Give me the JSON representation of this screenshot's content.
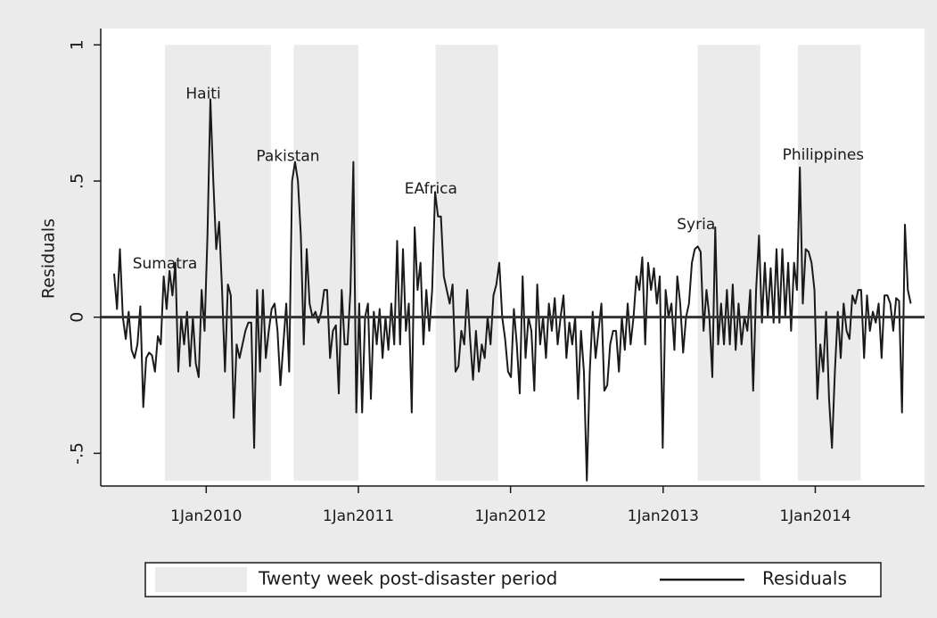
{
  "chart_data": {
    "type": "line",
    "y_label": "Residuals",
    "ylim": [
      -0.62,
      1.06
    ],
    "yticks": [
      {
        "value": -0.5,
        "label": "-.5"
      },
      0,
      {
        "value": 0.5,
        "label": ".5"
      },
      1
    ],
    "xlim": [
      "2009-04-23",
      "2014-09-20"
    ],
    "xticks": [
      {
        "value": "2010-01-01",
        "label": "1Jan2010"
      },
      {
        "value": "2011-01-01",
        "label": "1Jan2011"
      },
      {
        "value": "2012-01-01",
        "label": "1Jan2012"
      },
      {
        "value": "2013-01-01",
        "label": "1Jan2013"
      },
      {
        "value": "2014-01-01",
        "label": "1Jan2014"
      }
    ],
    "reference_line": 0,
    "bands": {
      "name": "Twenty week post-disaster period",
      "color": "#ebebeb",
      "periods": [
        [
          "2009-09-24",
          "2010-06-05"
        ],
        [
          "2010-07-30",
          "2011-01-01"
        ],
        [
          "2011-07-05",
          "2011-12-02"
        ],
        [
          "2013-03-25",
          "2013-08-22"
        ],
        [
          "2013-11-20",
          "2014-04-20"
        ]
      ]
    },
    "annotations": [
      {
        "text": "Sumatra",
        "x": "2009-09-24",
        "y": 0.196
      },
      {
        "text": "Haiti",
        "x": "2009-12-25",
        "y": 0.82
      },
      {
        "text": "Pakistan",
        "x": "2010-07-16",
        "y": 0.59
      },
      {
        "text": "EAfrica",
        "x": "2011-06-24",
        "y": 0.47
      },
      {
        "text": "Syria",
        "x": "2013-03-21",
        "y": 0.34
      },
      {
        "text": "Philippines",
        "x": "2014-01-20",
        "y": 0.595
      }
    ],
    "x": [
      "2009-05-25",
      "2009-06-01",
      "2009-06-08",
      "2009-06-15",
      "2009-06-22",
      "2009-06-29",
      "2009-07-06",
      "2009-07-13",
      "2009-07-20",
      "2009-07-27",
      "2009-08-03",
      "2009-08-10",
      "2009-08-17",
      "2009-08-24",
      "2009-08-31",
      "2009-09-07",
      "2009-09-14",
      "2009-09-21",
      "2009-09-28",
      "2009-10-05",
      "2009-10-12",
      "2009-10-19",
      "2009-10-26",
      "2009-11-02",
      "2009-11-09",
      "2009-11-16",
      "2009-11-23",
      "2009-11-30",
      "2009-12-07",
      "2009-12-14",
      "2009-12-21",
      "2009-12-28",
      "2010-01-04",
      "2010-01-11",
      "2010-01-18",
      "2010-01-25",
      "2010-02-01",
      "2010-02-08",
      "2010-02-15",
      "2010-02-22",
      "2010-03-01",
      "2010-03-08",
      "2010-03-15",
      "2010-03-22",
      "2010-03-29",
      "2010-04-05",
      "2010-04-12",
      "2010-04-19",
      "2010-04-26",
      "2010-05-03",
      "2010-05-10",
      "2010-05-17",
      "2010-05-24",
      "2010-05-31",
      "2010-06-07",
      "2010-06-14",
      "2010-06-21",
      "2010-06-28",
      "2010-07-05",
      "2010-07-12",
      "2010-07-19",
      "2010-07-26",
      "2010-08-02",
      "2010-08-09",
      "2010-08-16",
      "2010-08-23",
      "2010-08-30",
      "2010-09-06",
      "2010-09-13",
      "2010-09-20",
      "2010-09-27",
      "2010-10-04",
      "2010-10-11",
      "2010-10-18",
      "2010-10-25",
      "2010-11-01",
      "2010-11-08",
      "2010-11-15",
      "2010-11-22",
      "2010-11-29",
      "2010-12-06",
      "2010-12-13",
      "2010-12-20",
      "2010-12-27",
      "2011-01-03",
      "2011-01-10",
      "2011-01-17",
      "2011-01-24",
      "2011-01-31",
      "2011-02-07",
      "2011-02-14",
      "2011-02-21",
      "2011-02-28",
      "2011-03-07",
      "2011-03-14",
      "2011-03-21",
      "2011-03-28",
      "2011-04-04",
      "2011-04-11",
      "2011-04-18",
      "2011-04-25",
      "2011-05-02",
      "2011-05-09",
      "2011-05-16",
      "2011-05-23",
      "2011-05-30",
      "2011-06-06",
      "2011-06-13",
      "2011-06-20",
      "2011-06-27",
      "2011-07-04",
      "2011-07-11",
      "2011-07-18",
      "2011-07-25",
      "2011-08-01",
      "2011-08-08",
      "2011-08-15",
      "2011-08-22",
      "2011-08-29",
      "2011-09-05",
      "2011-09-12",
      "2011-09-19",
      "2011-09-26",
      "2011-10-03",
      "2011-10-10",
      "2011-10-17",
      "2011-10-24",
      "2011-10-31",
      "2011-11-07",
      "2011-11-14",
      "2011-11-21",
      "2011-11-28",
      "2011-12-05",
      "2011-12-12",
      "2011-12-19",
      "2011-12-26",
      "2012-01-02",
      "2012-01-09",
      "2012-01-16",
      "2012-01-23",
      "2012-01-30",
      "2012-02-06",
      "2012-02-13",
      "2012-02-20",
      "2012-02-27",
      "2012-03-05",
      "2012-03-12",
      "2012-03-19",
      "2012-03-26",
      "2012-04-02",
      "2012-04-09",
      "2012-04-16",
      "2012-04-23",
      "2012-04-30",
      "2012-05-07",
      "2012-05-14",
      "2012-05-21",
      "2012-05-28",
      "2012-06-04",
      "2012-06-11",
      "2012-06-18",
      "2012-06-25",
      "2012-07-02",
      "2012-07-09",
      "2012-07-16",
      "2012-07-23",
      "2012-07-30",
      "2012-08-06",
      "2012-08-13",
      "2012-08-20",
      "2012-08-27",
      "2012-09-03",
      "2012-09-10",
      "2012-09-17",
      "2012-09-24",
      "2012-10-01",
      "2012-10-08",
      "2012-10-15",
      "2012-10-22",
      "2012-10-29",
      "2012-11-05",
      "2012-11-12",
      "2012-11-19",
      "2012-11-26",
      "2012-12-03",
      "2012-12-10",
      "2012-12-17",
      "2012-12-24",
      "2012-12-31",
      "2013-01-07",
      "2013-01-14",
      "2013-01-21",
      "2013-01-28",
      "2013-02-04",
      "2013-02-11",
      "2013-02-18",
      "2013-02-25",
      "2013-03-04",
      "2013-03-11",
      "2013-03-18",
      "2013-03-25",
      "2013-04-01",
      "2013-04-08",
      "2013-04-15",
      "2013-04-22",
      "2013-04-29",
      "2013-05-06",
      "2013-05-13",
      "2013-05-20",
      "2013-05-27",
      "2013-06-03",
      "2013-06-10",
      "2013-06-17",
      "2013-06-24",
      "2013-07-01",
      "2013-07-08",
      "2013-07-15",
      "2013-07-22",
      "2013-07-29",
      "2013-08-05",
      "2013-08-12",
      "2013-08-19",
      "2013-08-26",
      "2013-09-02",
      "2013-09-09",
      "2013-09-16",
      "2013-09-23",
      "2013-09-30",
      "2013-10-07",
      "2013-10-14",
      "2013-10-21",
      "2013-10-28",
      "2013-11-04",
      "2013-11-11",
      "2013-11-18",
      "2013-11-25",
      "2013-12-02",
      "2013-12-09",
      "2013-12-16",
      "2013-12-23",
      "2013-12-30",
      "2014-01-06",
      "2014-01-13",
      "2014-01-20",
      "2014-01-27",
      "2014-02-03",
      "2014-02-10",
      "2014-02-17",
      "2014-02-24",
      "2014-03-03",
      "2014-03-10",
      "2014-03-17",
      "2014-03-24",
      "2014-03-31",
      "2014-04-07",
      "2014-04-14",
      "2014-04-21",
      "2014-04-28",
      "2014-05-05",
      "2014-05-12",
      "2014-05-19",
      "2014-05-26",
      "2014-06-02",
      "2014-06-09",
      "2014-06-16",
      "2014-06-23",
      "2014-06-30",
      "2014-07-07",
      "2014-07-14",
      "2014-07-21",
      "2014-07-28",
      "2014-08-04",
      "2014-08-11",
      "2014-08-18"
    ],
    "series": [
      {
        "name": "Residuals",
        "color": "#1a1a1a",
        "values": [
          0.16,
          0.03,
          0.25,
          0.0,
          -0.08,
          0.02,
          -0.12,
          -0.15,
          -0.1,
          0.04,
          -0.33,
          -0.15,
          -0.13,
          -0.14,
          -0.2,
          -0.07,
          -0.1,
          0.15,
          0.03,
          0.17,
          0.08,
          0.2,
          -0.2,
          0.0,
          -0.1,
          0.02,
          -0.18,
          0.0,
          -0.17,
          -0.22,
          0.1,
          -0.05,
          0.3,
          0.8,
          0.5,
          0.25,
          0.35,
          0.1,
          -0.2,
          0.12,
          0.08,
          -0.37,
          -0.1,
          -0.15,
          -0.1,
          -0.05,
          -0.02,
          -0.02,
          -0.48,
          0.1,
          -0.2,
          0.1,
          -0.15,
          -0.05,
          0.03,
          0.05,
          -0.05,
          -0.25,
          -0.1,
          0.05,
          -0.2,
          0.5,
          0.57,
          0.5,
          0.3,
          -0.1,
          0.25,
          0.05,
          0.0,
          0.02,
          -0.02,
          0.02,
          0.1,
          0.1,
          -0.15,
          -0.05,
          -0.03,
          -0.28,
          0.1,
          -0.1,
          -0.1,
          0.1,
          0.57,
          -0.35,
          0.05,
          -0.35,
          0.0,
          0.05,
          -0.3,
          0.02,
          -0.1,
          0.03,
          -0.15,
          0.0,
          -0.12,
          0.05,
          -0.1,
          0.28,
          -0.1,
          0.25,
          -0.05,
          0.05,
          -0.35,
          0.33,
          0.1,
          0.2,
          -0.1,
          0.1,
          -0.05,
          0.1,
          0.46,
          0.37,
          0.37,
          0.15,
          0.1,
          0.05,
          0.12,
          -0.2,
          -0.18,
          -0.05,
          -0.1,
          0.1,
          -0.08,
          -0.23,
          -0.05,
          -0.2,
          -0.1,
          -0.15,
          0.0,
          -0.1,
          0.08,
          0.12,
          0.2,
          0.0,
          -0.08,
          -0.2,
          -0.22,
          0.03,
          -0.1,
          -0.28,
          0.15,
          -0.15,
          0.0,
          -0.05,
          -0.27,
          0.12,
          -0.1,
          0.0,
          -0.15,
          0.05,
          -0.05,
          0.07,
          -0.1,
          0.0,
          0.08,
          -0.15,
          -0.02,
          -0.1,
          0.0,
          -0.3,
          -0.05,
          -0.2,
          -0.6,
          -0.2,
          0.02,
          -0.15,
          -0.05,
          0.05,
          -0.27,
          -0.25,
          -0.1,
          -0.05,
          -0.05,
          -0.2,
          0.0,
          -0.12,
          0.05,
          -0.1,
          0.0,
          0.15,
          0.1,
          0.22,
          -0.1,
          0.2,
          0.1,
          0.18,
          0.05,
          0.15,
          -0.48,
          0.1,
          0.0,
          0.05,
          -0.12,
          0.15,
          0.05,
          -0.13,
          0.0,
          0.05,
          0.2,
          0.25,
          0.26,
          0.24,
          -0.05,
          0.1,
          0.0,
          -0.22,
          0.33,
          -0.1,
          0.05,
          -0.1,
          0.1,
          -0.1,
          0.12,
          -0.12,
          0.05,
          -0.1,
          0.0,
          -0.05,
          0.1,
          -0.27,
          0.1,
          0.3,
          -0.02,
          0.2,
          0.0,
          0.18,
          -0.02,
          0.25,
          -0.02,
          0.25,
          0.0,
          0.2,
          -0.05,
          0.2,
          0.1,
          0.55,
          0.05,
          0.25,
          0.24,
          0.2,
          0.1,
          -0.3,
          -0.1,
          -0.2,
          0.02,
          -0.3,
          -0.48,
          -0.2,
          0.02,
          -0.15,
          0.05,
          -0.05,
          -0.08,
          0.08,
          0.05,
          0.1,
          0.1,
          -0.15,
          0.08,
          -0.05,
          0.02,
          -0.02,
          0.05,
          -0.15,
          0.08,
          0.08,
          0.05,
          -0.05,
          0.07,
          0.06,
          -0.35,
          0.34,
          0.1,
          0.05
        ]
      }
    ]
  }
}
